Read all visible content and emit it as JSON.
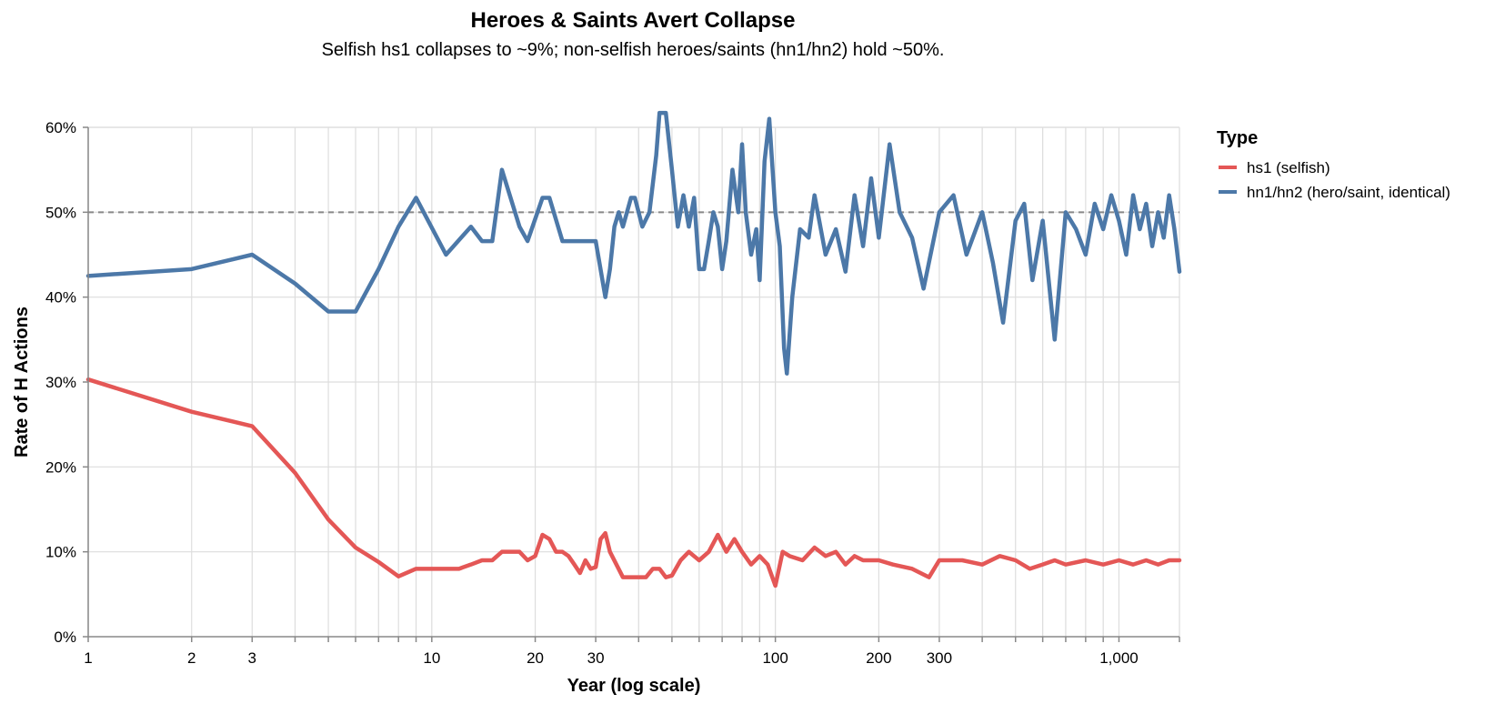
{
  "chart_data": {
    "type": "line",
    "title": "Heroes & Saints Avert Collapse",
    "subtitle": "Selfish hs1 collapses to ~9%; non-selfish heroes/saints (hn1/hn2) hold ~50%.",
    "xlabel": "Year (log scale)",
    "ylabel": "Rate of H Actions",
    "x_scale": "log",
    "xlim": [
      1,
      1500
    ],
    "ylim": [
      0,
      0.6
    ],
    "x_ticks": [
      1,
      2,
      3,
      10,
      20,
      30,
      100,
      200,
      300,
      1000
    ],
    "x_tick_labels": [
      "1",
      "2",
      "3",
      "10",
      "20",
      "30",
      "100",
      "200",
      "300",
      "1,000"
    ],
    "y_ticks": [
      0,
      0.1,
      0.2,
      0.3,
      0.4,
      0.5,
      0.6
    ],
    "y_tick_labels": [
      "0%",
      "10%",
      "20%",
      "30%",
      "40%",
      "50%",
      "60%"
    ],
    "grid": "vertical",
    "reference_line": {
      "y": 0.5,
      "style": "dashed"
    },
    "legend": {
      "title": "Type",
      "position": "right"
    },
    "series": [
      {
        "name": "hs1 (selfish)",
        "color": "#e45756",
        "points": [
          [
            1,
            0.303
          ],
          [
            2,
            0.265
          ],
          [
            3,
            0.248
          ],
          [
            4,
            0.193
          ],
          [
            5,
            0.138
          ],
          [
            6,
            0.105
          ],
          [
            7,
            0.088
          ],
          [
            8,
            0.071
          ],
          [
            9,
            0.08
          ],
          [
            10,
            0.08
          ],
          [
            12,
            0.08
          ],
          [
            13,
            0.085
          ],
          [
            14,
            0.09
          ],
          [
            15,
            0.09
          ],
          [
            16,
            0.1
          ],
          [
            17,
            0.1
          ],
          [
            18,
            0.1
          ],
          [
            19,
            0.09
          ],
          [
            20,
            0.095
          ],
          [
            21,
            0.12
          ],
          [
            22,
            0.115
          ],
          [
            23,
            0.1
          ],
          [
            24,
            0.1
          ],
          [
            25,
            0.095
          ],
          [
            26,
            0.085
          ],
          [
            27,
            0.075
          ],
          [
            28,
            0.09
          ],
          [
            29,
            0.08
          ],
          [
            30,
            0.082
          ],
          [
            31,
            0.115
          ],
          [
            32,
            0.122
          ],
          [
            33,
            0.1
          ],
          [
            36,
            0.07
          ],
          [
            40,
            0.07
          ],
          [
            42,
            0.07
          ],
          [
            44,
            0.08
          ],
          [
            46,
            0.08
          ],
          [
            48,
            0.07
          ],
          [
            50,
            0.072
          ],
          [
            53,
            0.09
          ],
          [
            56,
            0.1
          ],
          [
            60,
            0.09
          ],
          [
            64,
            0.1
          ],
          [
            68,
            0.12
          ],
          [
            72,
            0.1
          ],
          [
            76,
            0.115
          ],
          [
            80,
            0.1
          ],
          [
            85,
            0.085
          ],
          [
            90,
            0.095
          ],
          [
            95,
            0.085
          ],
          [
            100,
            0.06
          ],
          [
            105,
            0.1
          ],
          [
            110,
            0.095
          ],
          [
            120,
            0.09
          ],
          [
            130,
            0.105
          ],
          [
            140,
            0.095
          ],
          [
            150,
            0.1
          ],
          [
            160,
            0.085
          ],
          [
            170,
            0.095
          ],
          [
            180,
            0.09
          ],
          [
            200,
            0.09
          ],
          [
            220,
            0.085
          ],
          [
            250,
            0.08
          ],
          [
            280,
            0.07
          ],
          [
            300,
            0.09
          ],
          [
            350,
            0.09
          ],
          [
            400,
            0.085
          ],
          [
            450,
            0.095
          ],
          [
            500,
            0.09
          ],
          [
            550,
            0.08
          ],
          [
            600,
            0.085
          ],
          [
            650,
            0.09
          ],
          [
            700,
            0.085
          ],
          [
            800,
            0.09
          ],
          [
            900,
            0.085
          ],
          [
            1000,
            0.09
          ],
          [
            1100,
            0.085
          ],
          [
            1200,
            0.09
          ],
          [
            1300,
            0.085
          ],
          [
            1400,
            0.09
          ],
          [
            1500,
            0.09
          ]
        ]
      },
      {
        "name": "hn1/hn2 (hero/saint, identical)",
        "color": "#4c78a8",
        "points": [
          [
            1,
            0.425
          ],
          [
            2,
            0.433
          ],
          [
            3,
            0.45
          ],
          [
            4,
            0.416
          ],
          [
            5,
            0.383
          ],
          [
            6,
            0.383
          ],
          [
            7,
            0.433
          ],
          [
            8,
            0.483
          ],
          [
            9,
            0.517
          ],
          [
            11,
            0.45
          ],
          [
            13,
            0.483
          ],
          [
            14,
            0.466
          ],
          [
            15,
            0.466
          ],
          [
            16,
            0.55
          ],
          [
            18,
            0.483
          ],
          [
            19,
            0.466
          ],
          [
            21,
            0.517
          ],
          [
            22,
            0.517
          ],
          [
            24,
            0.466
          ],
          [
            26,
            0.466
          ],
          [
            28,
            0.466
          ],
          [
            30,
            0.466
          ],
          [
            32,
            0.4
          ],
          [
            33,
            0.433
          ],
          [
            34,
            0.483
          ],
          [
            35,
            0.5
          ],
          [
            36,
            0.483
          ],
          [
            38,
            0.517
          ],
          [
            39,
            0.517
          ],
          [
            41,
            0.483
          ],
          [
            43,
            0.5
          ],
          [
            45,
            0.567
          ],
          [
            46,
            0.617
          ],
          [
            48,
            0.617
          ],
          [
            50,
            0.55
          ],
          [
            52,
            0.483
          ],
          [
            54,
            0.52
          ],
          [
            56,
            0.483
          ],
          [
            58,
            0.517
          ],
          [
            60,
            0.433
          ],
          [
            62,
            0.433
          ],
          [
            64,
            0.466
          ],
          [
            66,
            0.5
          ],
          [
            68,
            0.483
          ],
          [
            70,
            0.433
          ],
          [
            72,
            0.466
          ],
          [
            75,
            0.55
          ],
          [
            78,
            0.5
          ],
          [
            80,
            0.58
          ],
          [
            82,
            0.5
          ],
          [
            85,
            0.45
          ],
          [
            88,
            0.48
          ],
          [
            90,
            0.42
          ],
          [
            93,
            0.56
          ],
          [
            96,
            0.61
          ],
          [
            100,
            0.5
          ],
          [
            103,
            0.46
          ],
          [
            106,
            0.34
          ],
          [
            108,
            0.31
          ],
          [
            112,
            0.4
          ],
          [
            118,
            0.48
          ],
          [
            125,
            0.47
          ],
          [
            130,
            0.52
          ],
          [
            140,
            0.45
          ],
          [
            150,
            0.48
          ],
          [
            160,
            0.43
          ],
          [
            170,
            0.52
          ],
          [
            180,
            0.46
          ],
          [
            190,
            0.54
          ],
          [
            200,
            0.47
          ],
          [
            215,
            0.58
          ],
          [
            230,
            0.5
          ],
          [
            250,
            0.47
          ],
          [
            270,
            0.41
          ],
          [
            300,
            0.5
          ],
          [
            330,
            0.52
          ],
          [
            360,
            0.45
          ],
          [
            400,
            0.5
          ],
          [
            430,
            0.44
          ],
          [
            460,
            0.37
          ],
          [
            500,
            0.49
          ],
          [
            530,
            0.51
          ],
          [
            560,
            0.42
          ],
          [
            600,
            0.49
          ],
          [
            650,
            0.35
          ],
          [
            700,
            0.5
          ],
          [
            750,
            0.48
          ],
          [
            800,
            0.45
          ],
          [
            850,
            0.51
          ],
          [
            900,
            0.48
          ],
          [
            950,
            0.52
          ],
          [
            1000,
            0.49
          ],
          [
            1050,
            0.45
          ],
          [
            1100,
            0.52
          ],
          [
            1150,
            0.48
          ],
          [
            1200,
            0.51
          ],
          [
            1250,
            0.46
          ],
          [
            1300,
            0.5
          ],
          [
            1350,
            0.47
          ],
          [
            1400,
            0.52
          ],
          [
            1450,
            0.48
          ],
          [
            1500,
            0.43
          ]
        ]
      }
    ]
  }
}
